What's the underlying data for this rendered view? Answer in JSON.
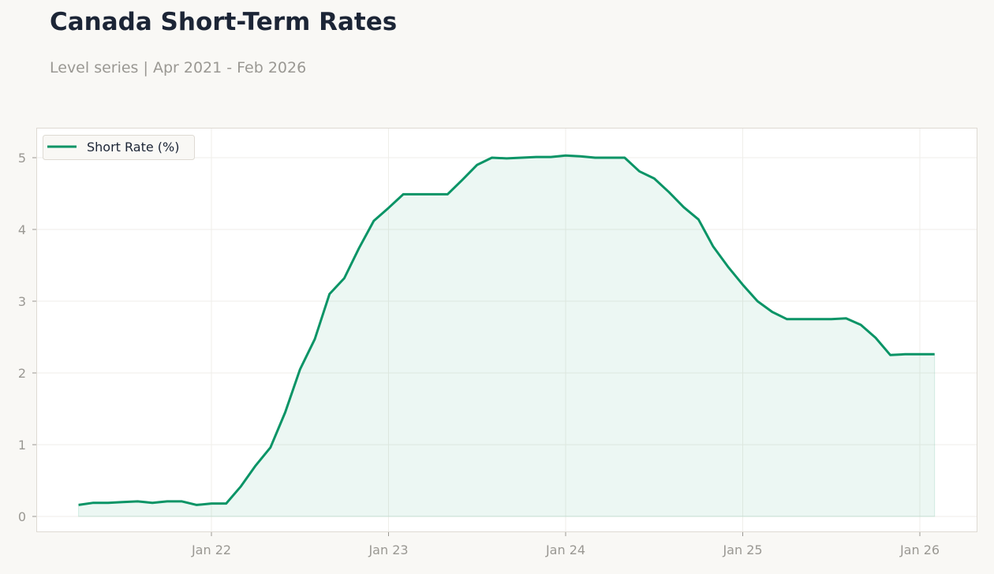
{
  "header": {
    "title": "Canada Short-Term Rates",
    "subtitle": "Level series | Apr 2021 - Feb 2026"
  },
  "chart_data": {
    "type": "area",
    "title": "Canada Short-Term Rates",
    "subtitle": "Level series | Apr 2021 - Feb 2026",
    "xlabel": "",
    "ylabel": "",
    "ylim": [
      -0.2,
      5.4
    ],
    "xlim": [
      "2021-01",
      "2026-05"
    ],
    "grid": true,
    "legend_position": "top-left",
    "y_ticks": [
      "0",
      "1",
      "2",
      "3",
      "4",
      "5"
    ],
    "x_ticks": [
      {
        "label": "Jan 22",
        "date": "2022-01"
      },
      {
        "label": "Jan 23",
        "date": "2023-01"
      },
      {
        "label": "Jan 24",
        "date": "2024-01"
      },
      {
        "label": "Jan 25",
        "date": "2025-01"
      },
      {
        "label": "Jan 26",
        "date": "2026-01"
      }
    ],
    "series": [
      {
        "name": "Short Rate (%)",
        "color": "#0a9466",
        "fill_color": "#0a9466",
        "x": [
          "2021-04",
          "2021-05",
          "2021-06",
          "2021-07",
          "2021-08",
          "2021-09",
          "2021-10",
          "2021-11",
          "2021-12",
          "2022-01",
          "2022-02",
          "2022-03",
          "2022-04",
          "2022-05",
          "2022-06",
          "2022-07",
          "2022-08",
          "2022-09",
          "2022-10",
          "2022-11",
          "2022-12",
          "2023-01",
          "2023-02",
          "2023-03",
          "2023-04",
          "2023-05",
          "2023-06",
          "2023-07",
          "2023-08",
          "2023-09",
          "2023-10",
          "2023-11",
          "2023-12",
          "2024-01",
          "2024-02",
          "2024-03",
          "2024-04",
          "2024-05",
          "2024-06",
          "2024-07",
          "2024-08",
          "2024-09",
          "2024-10",
          "2024-11",
          "2024-12",
          "2025-01",
          "2025-02",
          "2025-03",
          "2025-04",
          "2025-05",
          "2025-06",
          "2025-07",
          "2025-08",
          "2025-09",
          "2025-10",
          "2025-11",
          "2025-12",
          "2026-01",
          "2026-02"
        ],
        "values": [
          0.16,
          0.19,
          0.19,
          0.2,
          0.21,
          0.19,
          0.21,
          0.21,
          0.16,
          0.18,
          0.18,
          0.42,
          0.71,
          0.96,
          1.45,
          2.05,
          2.47,
          3.1,
          3.32,
          3.74,
          4.12,
          4.3,
          4.49,
          4.49,
          4.49,
          4.49,
          4.69,
          4.9,
          5.0,
          4.99,
          5.0,
          5.01,
          5.01,
          5.03,
          5.02,
          5.0,
          5.0,
          5.0,
          4.81,
          4.71,
          4.52,
          4.31,
          4.14,
          3.76,
          3.48,
          3.23,
          3.0,
          2.85,
          2.75,
          2.75,
          2.75,
          2.75,
          2.76,
          2.67,
          2.49,
          2.25,
          2.26,
          2.26,
          2.26
        ]
      }
    ]
  }
}
